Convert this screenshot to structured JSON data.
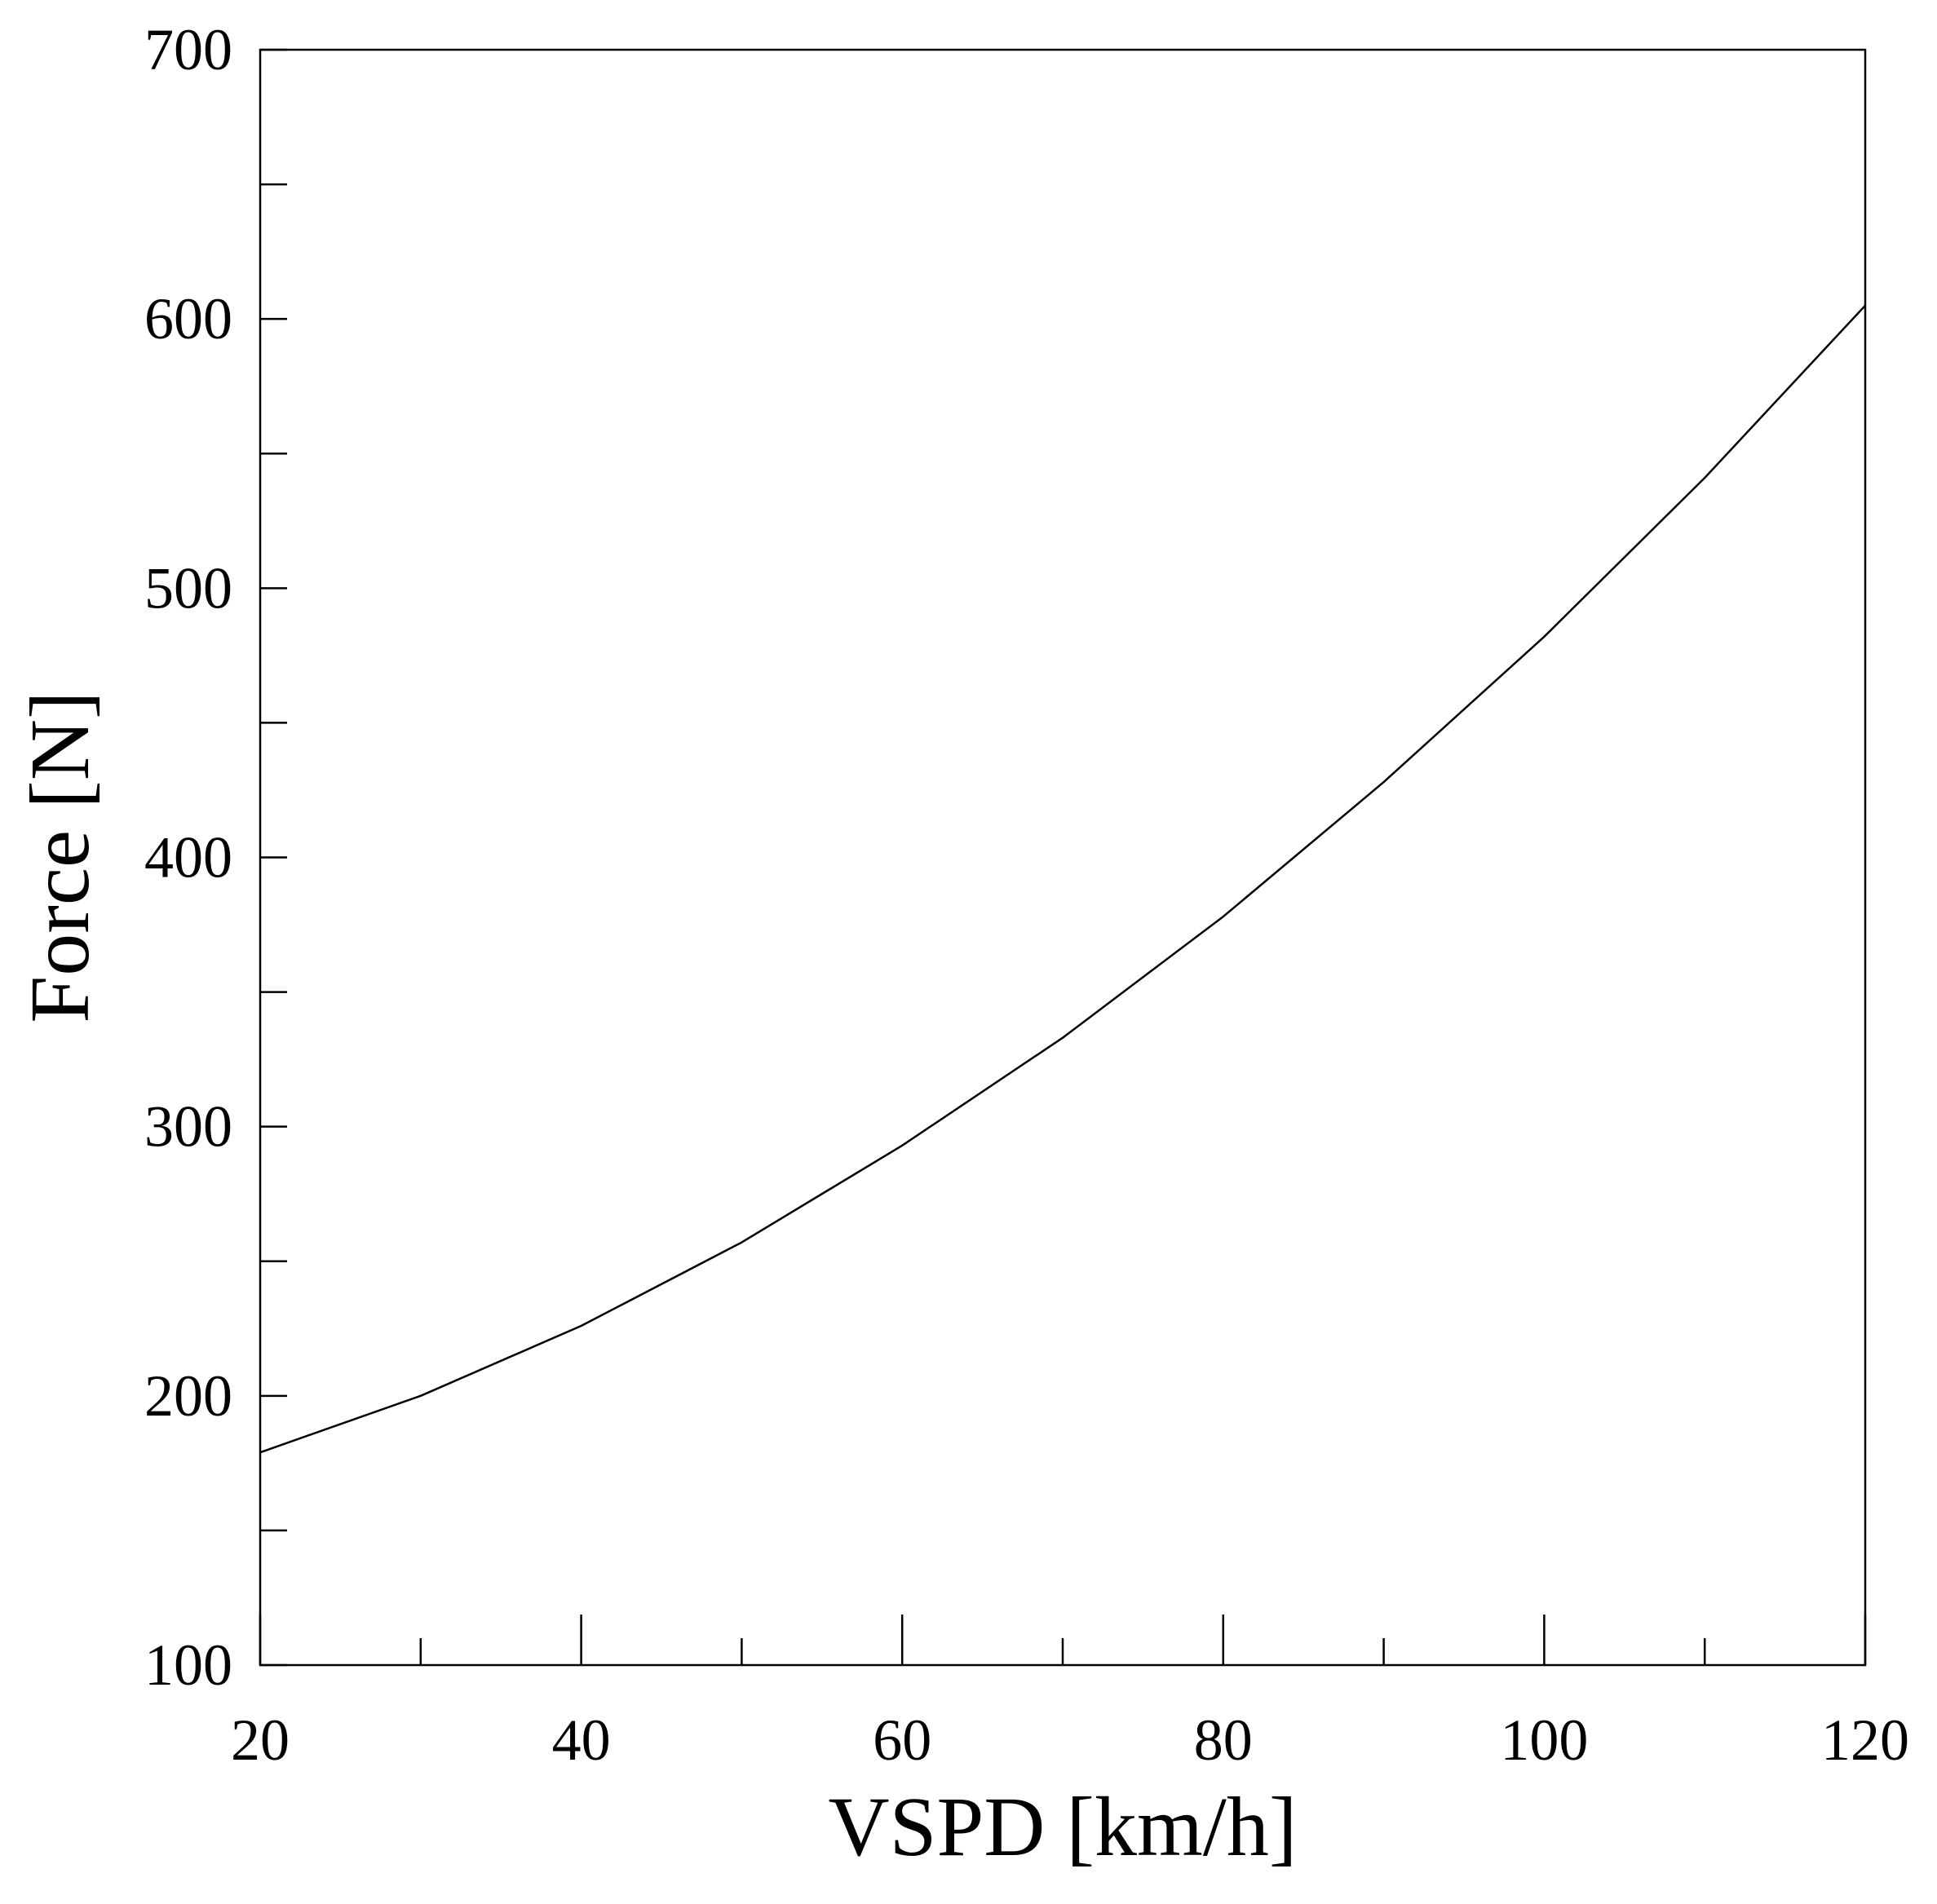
{
  "chart_data": {
    "type": "line",
    "xlabel": "VSPD [km/h]",
    "ylabel": "Force [N]",
    "xlim": [
      20,
      120
    ],
    "ylim": [
      100,
      700
    ],
    "x_ticks": [
      20,
      40,
      60,
      80,
      100,
      120
    ],
    "x_minor_ticks": [
      30,
      50,
      70,
      90,
      110
    ],
    "y_ticks": [
      100,
      200,
      300,
      400,
      500,
      600,
      700
    ],
    "y_minor_ticks": [
      150,
      250,
      350,
      450,
      550,
      650
    ],
    "grid": false,
    "series": [
      {
        "x": [
          20,
          30,
          40,
          50,
          60,
          70,
          80,
          90,
          100,
          110,
          120
        ],
        "y": [
          179,
          200,
          226,
          257,
          293,
          333,
          378,
          428,
          482,
          541,
          605
        ],
        "color": "#000000"
      }
    ]
  }
}
